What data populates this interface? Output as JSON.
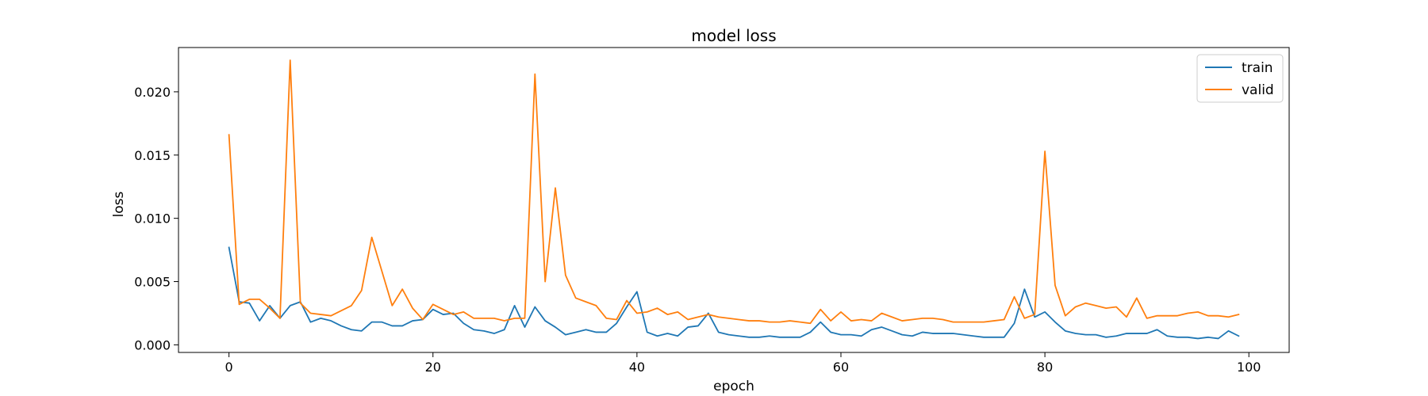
{
  "chart_data": {
    "type": "line",
    "title": "model loss",
    "xlabel": "epoch",
    "ylabel": "loss",
    "xlim": [
      -4.95,
      103.95
    ],
    "ylim": [
      -0.0006,
      0.0235
    ],
    "xticks": [
      0,
      20,
      40,
      60,
      80,
      100
    ],
    "xtick_labels": [
      "0",
      "20",
      "40",
      "60",
      "80",
      "100"
    ],
    "yticks": [
      0.0,
      0.005,
      0.01,
      0.015,
      0.02
    ],
    "ytick_labels": [
      "0.000",
      "0.005",
      "0.010",
      "0.015",
      "0.020"
    ],
    "grid": false,
    "legend": {
      "position": "top-right"
    },
    "series": [
      {
        "name": "train",
        "color": "#1f77b4",
        "values": [
          0.0077,
          0.0034,
          0.0033,
          0.0019,
          0.0031,
          0.0021,
          0.0031,
          0.0034,
          0.0018,
          0.0021,
          0.0019,
          0.0015,
          0.0012,
          0.0011,
          0.0018,
          0.0018,
          0.0015,
          0.0015,
          0.0019,
          0.002,
          0.0028,
          0.0024,
          0.0025,
          0.0017,
          0.0012,
          0.0011,
          0.0009,
          0.0012,
          0.0031,
          0.0014,
          0.003,
          0.0019,
          0.0014,
          0.0008,
          0.001,
          0.0012,
          0.001,
          0.001,
          0.0017,
          0.003,
          0.0042,
          0.001,
          0.0007,
          0.0009,
          0.0007,
          0.0014,
          0.0015,
          0.0025,
          0.001,
          0.0008,
          0.0007,
          0.0006,
          0.0006,
          0.0007,
          0.0006,
          0.0006,
          0.0006,
          0.001,
          0.0018,
          0.001,
          0.0008,
          0.0008,
          0.0007,
          0.0012,
          0.0014,
          0.0011,
          0.0008,
          0.0007,
          0.001,
          0.0009,
          0.0009,
          0.0009,
          0.0008,
          0.0007,
          0.0006,
          0.0006,
          0.0006,
          0.0017,
          0.0044,
          0.0022,
          0.0026,
          0.0018,
          0.0011,
          0.0009,
          0.0008,
          0.0008,
          0.0006,
          0.0007,
          0.0009,
          0.0009,
          0.0009,
          0.0012,
          0.0007,
          0.0006,
          0.0006,
          0.0005,
          0.0006,
          0.0005,
          0.0011,
          0.0007
        ]
      },
      {
        "name": "valid",
        "color": "#ff7f0e",
        "values": [
          0.0166,
          0.0032,
          0.0036,
          0.0036,
          0.0029,
          0.0021,
          0.0225,
          0.0033,
          0.0025,
          0.0024,
          0.0023,
          0.0027,
          0.0031,
          0.0043,
          0.0085,
          0.0058,
          0.0031,
          0.0044,
          0.0029,
          0.002,
          0.0032,
          0.0028,
          0.0024,
          0.0026,
          0.0021,
          0.0021,
          0.0021,
          0.0019,
          0.0021,
          0.0021,
          0.0214,
          0.005,
          0.0124,
          0.0055,
          0.0037,
          0.0034,
          0.0031,
          0.0021,
          0.002,
          0.0035,
          0.0025,
          0.0026,
          0.0029,
          0.0024,
          0.0026,
          0.002,
          0.0022,
          0.0024,
          0.0022,
          0.0021,
          0.002,
          0.0019,
          0.0019,
          0.0018,
          0.0018,
          0.0019,
          0.0018,
          0.0017,
          0.0028,
          0.0019,
          0.0026,
          0.0019,
          0.002,
          0.0019,
          0.0025,
          0.0022,
          0.0019,
          0.002,
          0.0021,
          0.0021,
          0.002,
          0.0018,
          0.0018,
          0.0018,
          0.0018,
          0.0019,
          0.002,
          0.0038,
          0.0021,
          0.0024,
          0.0153,
          0.0047,
          0.0023,
          0.003,
          0.0033,
          0.0031,
          0.0029,
          0.003,
          0.0022,
          0.0037,
          0.0021,
          0.0023,
          0.0023,
          0.0023,
          0.0025,
          0.0026,
          0.0023,
          0.0023,
          0.0022,
          0.0024
        ]
      }
    ]
  }
}
